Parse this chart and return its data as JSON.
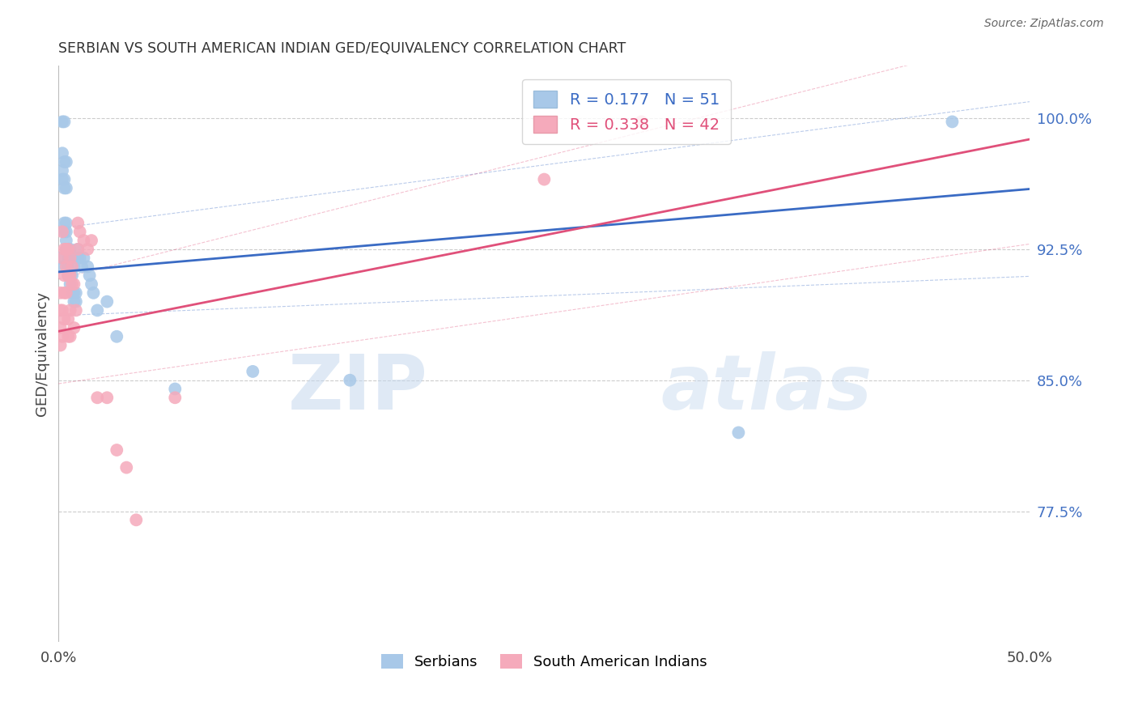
{
  "title": "SERBIAN VS SOUTH AMERICAN INDIAN GED/EQUIVALENCY CORRELATION CHART",
  "source": "Source: ZipAtlas.com",
  "ylabel": "GED/Equivalency",
  "ytick_labels": [
    "100.0%",
    "92.5%",
    "85.0%",
    "77.5%"
  ],
  "ytick_values": [
    1.0,
    0.925,
    0.85,
    0.775
  ],
  "xlim": [
    0.0,
    0.5
  ],
  "ylim": [
    0.7,
    1.03
  ],
  "blue_R": 0.177,
  "blue_N": 51,
  "pink_R": 0.338,
  "pink_N": 42,
  "blue_dot_color": "#A8C8E8",
  "pink_dot_color": "#F5AABB",
  "blue_line_color": "#3A6BC4",
  "pink_line_color": "#E0507A",
  "watermark_text_color": "#C8D8F0",
  "legend_label_blue": "Serbians",
  "legend_label_pink": "South American Indians",
  "blue_x": [
    0.001,
    0.001,
    0.002,
    0.002,
    0.002,
    0.002,
    0.003,
    0.003,
    0.003,
    0.003,
    0.003,
    0.003,
    0.004,
    0.004,
    0.004,
    0.004,
    0.004,
    0.004,
    0.005,
    0.005,
    0.005,
    0.005,
    0.006,
    0.006,
    0.006,
    0.006,
    0.007,
    0.007,
    0.007,
    0.008,
    0.008,
    0.008,
    0.009,
    0.009,
    0.01,
    0.01,
    0.011,
    0.012,
    0.013,
    0.015,
    0.016,
    0.017,
    0.018,
    0.02,
    0.025,
    0.03,
    0.06,
    0.1,
    0.15,
    0.35,
    0.46
  ],
  "blue_y": [
    0.915,
    0.92,
    0.965,
    0.97,
    0.98,
    0.998,
    0.935,
    0.94,
    0.96,
    0.965,
    0.975,
    0.998,
    0.925,
    0.93,
    0.935,
    0.94,
    0.96,
    0.975,
    0.91,
    0.915,
    0.92,
    0.925,
    0.905,
    0.91,
    0.92,
    0.925,
    0.9,
    0.91,
    0.92,
    0.895,
    0.9,
    0.915,
    0.895,
    0.9,
    0.92,
    0.925,
    0.92,
    0.915,
    0.92,
    0.915,
    0.91,
    0.905,
    0.9,
    0.89,
    0.895,
    0.875,
    0.845,
    0.855,
    0.85,
    0.82,
    0.998
  ],
  "pink_x": [
    0.001,
    0.001,
    0.001,
    0.001,
    0.002,
    0.002,
    0.002,
    0.002,
    0.003,
    0.003,
    0.003,
    0.003,
    0.004,
    0.004,
    0.004,
    0.005,
    0.005,
    0.005,
    0.005,
    0.006,
    0.006,
    0.006,
    0.006,
    0.007,
    0.007,
    0.008,
    0.008,
    0.009,
    0.01,
    0.01,
    0.011,
    0.013,
    0.015,
    0.017,
    0.02,
    0.025,
    0.03,
    0.035,
    0.04,
    0.06,
    0.25,
    0.3
  ],
  "pink_y": [
    0.87,
    0.88,
    0.89,
    0.9,
    0.875,
    0.89,
    0.92,
    0.935,
    0.885,
    0.9,
    0.91,
    0.925,
    0.9,
    0.915,
    0.925,
    0.875,
    0.885,
    0.91,
    0.925,
    0.875,
    0.89,
    0.91,
    0.92,
    0.905,
    0.915,
    0.88,
    0.905,
    0.89,
    0.925,
    0.94,
    0.935,
    0.93,
    0.925,
    0.93,
    0.84,
    0.84,
    0.81,
    0.8,
    0.77,
    0.84,
    0.965,
    0.998
  ],
  "blue_intercept": 0.912,
  "blue_slope": 0.095,
  "pink_intercept": 0.878,
  "pink_slope": 0.22
}
